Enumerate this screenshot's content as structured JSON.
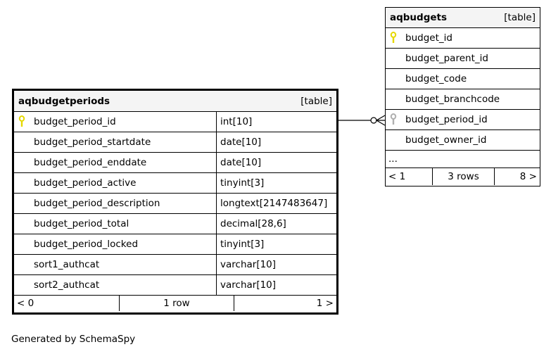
{
  "tables": [
    {
      "name": "aqbudgetperiods",
      "kind": "[table]",
      "columns": [
        {
          "name": "budget_period_id",
          "type": "int[10]",
          "key": "primary"
        },
        {
          "name": "budget_period_startdate",
          "type": "date[10]"
        },
        {
          "name": "budget_period_enddate",
          "type": "date[10]"
        },
        {
          "name": "budget_period_active",
          "type": "tinyint[3]"
        },
        {
          "name": "budget_period_description",
          "type": "longtext[2147483647]"
        },
        {
          "name": "budget_period_total",
          "type": "decimal[28,6]"
        },
        {
          "name": "budget_period_locked",
          "type": "tinyint[3]"
        },
        {
          "name": "sort1_authcat",
          "type": "varchar[10]"
        },
        {
          "name": "sort2_authcat",
          "type": "varchar[10]"
        }
      ],
      "footer": {
        "parents": "< 0",
        "rows": "1 row",
        "children": "1 >"
      }
    },
    {
      "name": "aqbudgets",
      "kind": "[table]",
      "columns": [
        {
          "name": "budget_id",
          "key": "primary"
        },
        {
          "name": "budget_parent_id"
        },
        {
          "name": "budget_code"
        },
        {
          "name": "budget_branchcode"
        },
        {
          "name": "budget_period_id",
          "key": "foreign"
        },
        {
          "name": "budget_owner_id"
        }
      ],
      "more": "...",
      "footer": {
        "parents": "< 1",
        "rows": "3 rows",
        "children": "8 >"
      }
    }
  ],
  "colors": {
    "primary_key": "#e6d800",
    "foreign_key": "#b0b0b0",
    "header_bg": "#f4f4f4"
  },
  "generated_by": "Generated by SchemaSpy"
}
